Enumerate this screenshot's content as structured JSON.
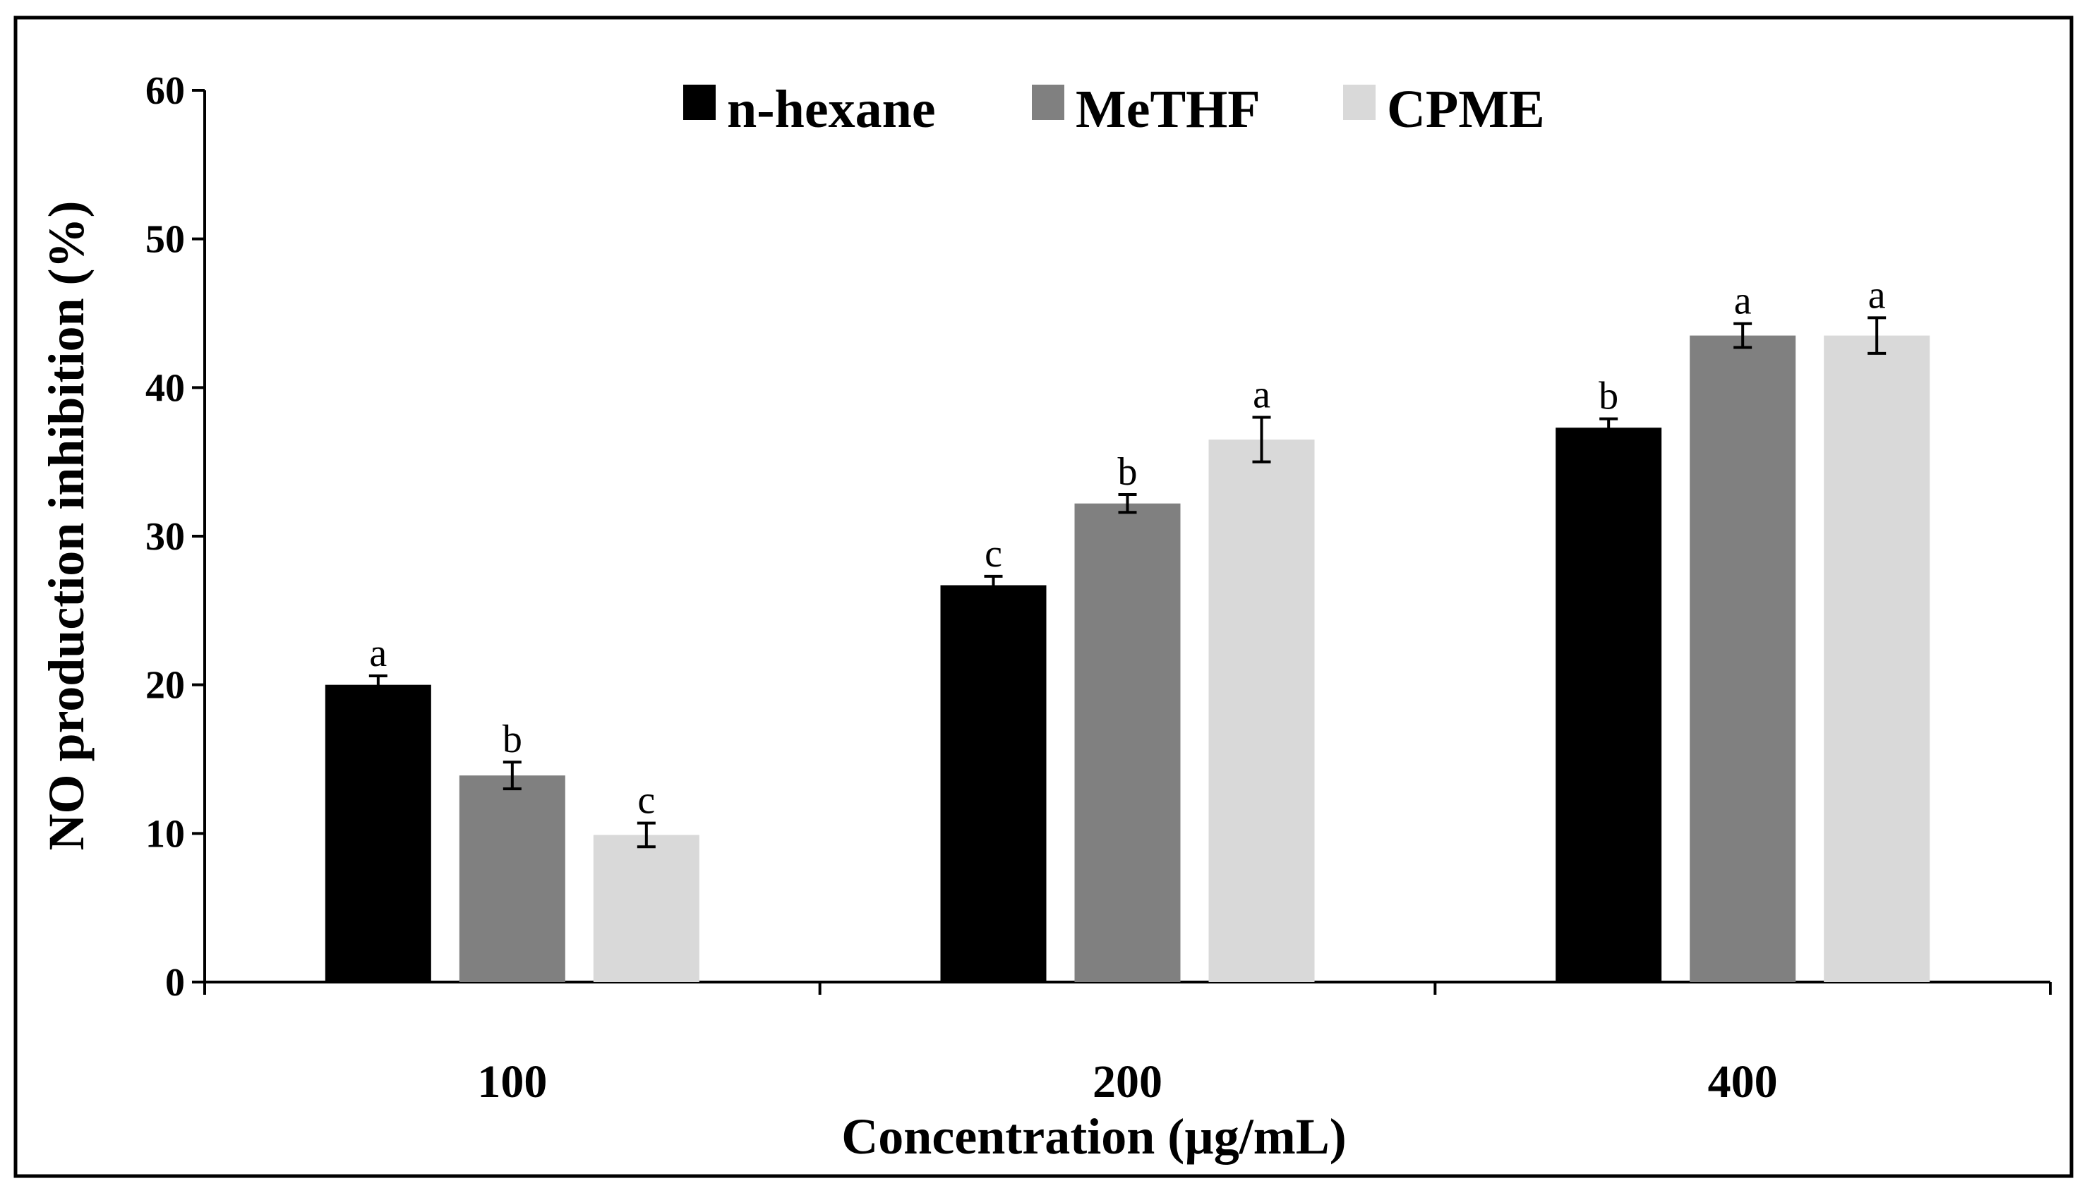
{
  "chart_data": {
    "type": "bar",
    "categories": [
      "100",
      "200",
      "400"
    ],
    "xlabel": "Concentration (µg/mL)",
    "ylabel": "NO production  inhibition (%)",
    "ylim": [
      0,
      60
    ],
    "yticks": [
      "0",
      "10",
      "20",
      "30",
      "40",
      "50",
      "60"
    ],
    "grid": false,
    "legend_position": "top-center",
    "series": [
      {
        "name": "n-hexane",
        "color": "#000000",
        "values": [
          20.0,
          26.7,
          37.3
        ],
        "errors": [
          0.6,
          0.6,
          0.6
        ],
        "labels": [
          "a",
          "c",
          "b"
        ]
      },
      {
        "name": "MeTHF",
        "color": "#808080",
        "values": [
          13.9,
          32.2,
          43.5
        ],
        "errors": [
          0.9,
          0.6,
          0.8
        ],
        "labels": [
          "b",
          "b",
          "a"
        ]
      },
      {
        "name": "CPME",
        "color": "#d9d9d9",
        "values": [
          9.9,
          36.5,
          43.5
        ],
        "errors": [
          0.8,
          1.5,
          1.2
        ],
        "labels": [
          "c",
          "a",
          "a"
        ]
      }
    ]
  }
}
